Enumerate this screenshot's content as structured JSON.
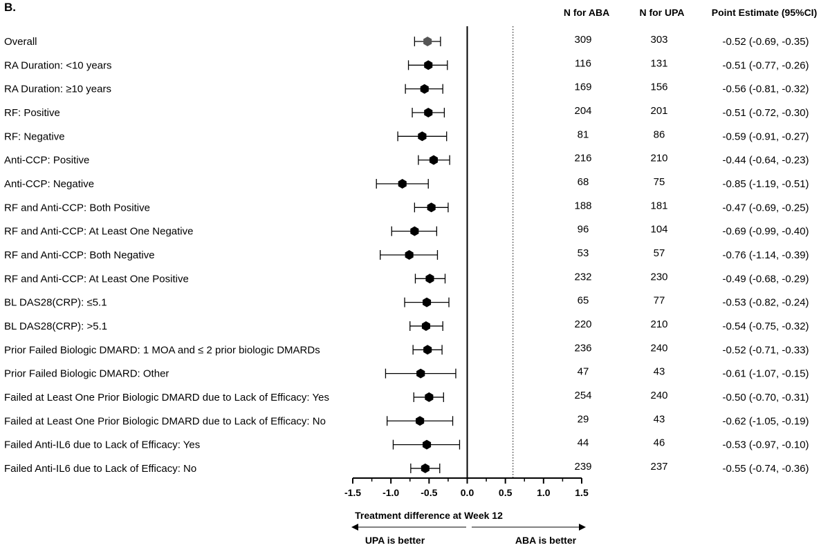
{
  "panel_label": "B.",
  "headers": {
    "n_aba": "N for ABA",
    "n_upa": "N for UPA",
    "estimate": "Point Estimate (95%CI)"
  },
  "chart_data": {
    "type": "forest",
    "xlabel": "Treatment difference at Week 12",
    "xlim": [
      -1.5,
      1.5
    ],
    "xticks": [
      "-1.5",
      "-1.0",
      "-0.5",
      "0.0",
      "0.5",
      "1.0",
      "1.5"
    ],
    "xtick_values": [
      -1.5,
      -1.0,
      -0.5,
      0.0,
      0.5,
      1.0,
      1.5
    ],
    "null_line": 0.0,
    "reference_line": 0.6,
    "direction_left": "UPA is better",
    "direction_right": "ABA is better",
    "marker_colors": {
      "overall": "#555555",
      "subgroup": "#000000"
    },
    "rows": [
      {
        "label": "Overall",
        "n_aba": "309",
        "n_upa": "303",
        "ci_text": "-0.52 (-0.69, -0.35)",
        "est": -0.52,
        "lo": -0.69,
        "hi": -0.35
      },
      {
        "label": "RA Duration: <10 years",
        "n_aba": "116",
        "n_upa": "131",
        "ci_text": "-0.51 (-0.77, -0.26)",
        "est": -0.51,
        "lo": -0.77,
        "hi": -0.26
      },
      {
        "label": "RA Duration: ≥10 years",
        "n_aba": "169",
        "n_upa": "156",
        "ci_text": "-0.56 (-0.81, -0.32)",
        "est": -0.56,
        "lo": -0.81,
        "hi": -0.32
      },
      {
        "label": "RF: Positive",
        "n_aba": "204",
        "n_upa": "201",
        "ci_text": "-0.51 (-0.72, -0.30)",
        "est": -0.51,
        "lo": -0.72,
        "hi": -0.3
      },
      {
        "label": "RF: Negative",
        "n_aba": "81",
        "n_upa": "86",
        "ci_text": "-0.59 (-0.91, -0.27)",
        "est": -0.59,
        "lo": -0.91,
        "hi": -0.27
      },
      {
        "label": "Anti-CCP: Positive",
        "n_aba": "216",
        "n_upa": "210",
        "ci_text": "-0.44 (-0.64, -0.23)",
        "est": -0.44,
        "lo": -0.64,
        "hi": -0.23
      },
      {
        "label": "Anti-CCP: Negative",
        "n_aba": "68",
        "n_upa": "75",
        "ci_text": "-0.85 (-1.19, -0.51)",
        "est": -0.85,
        "lo": -1.19,
        "hi": -0.51
      },
      {
        "label": "RF and Anti-CCP: Both Positive",
        "n_aba": "188",
        "n_upa": "181",
        "ci_text": "-0.47 (-0.69, -0.25)",
        "est": -0.47,
        "lo": -0.69,
        "hi": -0.25
      },
      {
        "label": "RF and Anti-CCP: At Least One Negative",
        "n_aba": "96",
        "n_upa": "104",
        "ci_text": "-0.69 (-0.99, -0.40)",
        "est": -0.69,
        "lo": -0.99,
        "hi": -0.4
      },
      {
        "label": "RF and Anti-CCP: Both Negative",
        "n_aba": "53",
        "n_upa": "57",
        "ci_text": "-0.76 (-1.14, -0.39)",
        "est": -0.76,
        "lo": -1.14,
        "hi": -0.39
      },
      {
        "label": "RF and Anti-CCP: At Least One Positive",
        "n_aba": "232",
        "n_upa": "230",
        "ci_text": "-0.49 (-0.68, -0.29)",
        "est": -0.49,
        "lo": -0.68,
        "hi": -0.29
      },
      {
        "label": "BL DAS28(CRP): ≤5.1",
        "n_aba": "65",
        "n_upa": "77",
        "ci_text": "-0.53 (-0.82, -0.24)",
        "est": -0.53,
        "lo": -0.82,
        "hi": -0.24
      },
      {
        "label": "BL DAS28(CRP): >5.1",
        "n_aba": "220",
        "n_upa": "210",
        "ci_text": "-0.54 (-0.75, -0.32)",
        "est": -0.54,
        "lo": -0.75,
        "hi": -0.32
      },
      {
        "label": "Prior Failed Biologic DMARD: 1 MOA and ≤ 2 prior biologic DMARDs",
        "n_aba": "236",
        "n_upa": "240",
        "ci_text": "-0.52 (-0.71, -0.33)",
        "est": -0.52,
        "lo": -0.71,
        "hi": -0.33
      },
      {
        "label": "Prior Failed Biologic DMARD: Other",
        "n_aba": "47",
        "n_upa": "43",
        "ci_text": "-0.61 (-1.07, -0.15)",
        "est": -0.61,
        "lo": -1.07,
        "hi": -0.15
      },
      {
        "label": "Failed at Least One Prior Biologic DMARD due to Lack of Efficacy: Yes",
        "n_aba": "254",
        "n_upa": "240",
        "ci_text": "-0.50 (-0.70, -0.31)",
        "est": -0.5,
        "lo": -0.7,
        "hi": -0.31
      },
      {
        "label": "Failed at Least One Prior Biologic DMARD due to Lack of Efficacy: No",
        "n_aba": "29",
        "n_upa": "43",
        "ci_text": "-0.62 (-1.05, -0.19)",
        "est": -0.62,
        "lo": -1.05,
        "hi": -0.19
      },
      {
        "label": "Failed Anti-IL6 due to Lack of Efficacy: Yes",
        "n_aba": "44",
        "n_upa": "46",
        "ci_text": "-0.53 (-0.97, -0.10)",
        "est": -0.53,
        "lo": -0.97,
        "hi": -0.1
      },
      {
        "label": "Failed Anti-IL6 due to Lack of Efficacy: No",
        "n_aba": "239",
        "n_upa": "237",
        "ci_text": "-0.55 (-0.74, -0.36)",
        "est": -0.55,
        "lo": -0.74,
        "hi": -0.36
      }
    ]
  }
}
